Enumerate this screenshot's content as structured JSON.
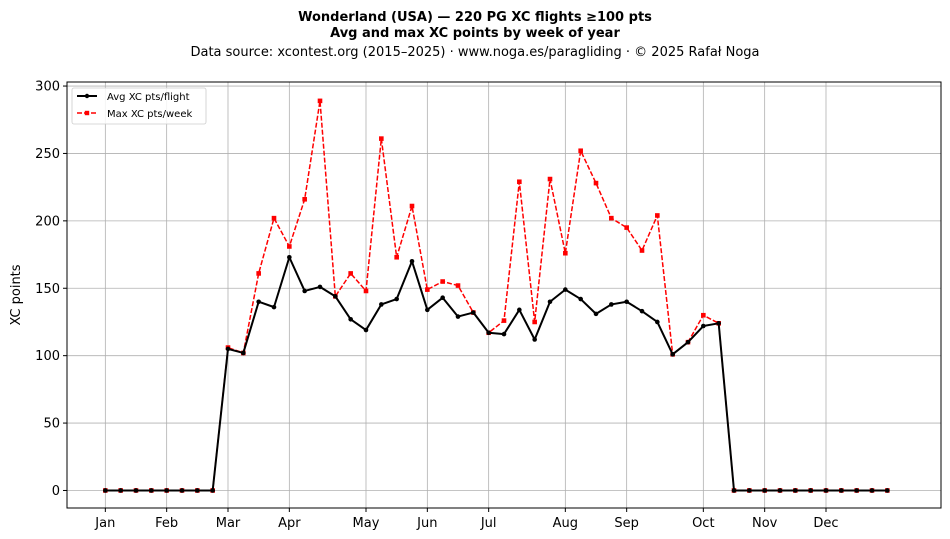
{
  "chart_data": {
    "type": "line",
    "title": "Wonderland (USA)  —  220 PG XC flights ≥100 pts",
    "subtitle": "Avg and max XC points by week of year",
    "source": "Data source: xcontest.org (2015–2025)  ·  www.noga.es/paragliding  ·  © 2025 Rafał Noga",
    "xlabel": "",
    "ylabel": "XC points",
    "ylim": [
      -13,
      303
    ],
    "yticks": [
      0,
      50,
      100,
      150,
      200,
      250,
      300
    ],
    "xlim": [
      -2.5,
      54.5
    ],
    "grid": true,
    "legend_position": "upper-left",
    "x_tick_positions": [
      0,
      4,
      8,
      12,
      17,
      21,
      25,
      30,
      34,
      39,
      43,
      47
    ],
    "x_tick_labels": [
      "Jan",
      "Feb",
      "Mar",
      "Apr",
      "May",
      "Jun",
      "Jul",
      "Aug",
      "Sep",
      "Oct",
      "Nov",
      "Dec"
    ],
    "x": [
      0,
      1,
      2,
      3,
      4,
      5,
      6,
      7,
      8,
      9,
      10,
      11,
      12,
      13,
      14,
      15,
      16,
      17,
      18,
      19,
      20,
      21,
      22,
      23,
      24,
      25,
      26,
      27,
      28,
      29,
      30,
      31,
      32,
      33,
      34,
      35,
      36,
      37,
      38,
      39,
      40,
      41,
      42,
      43,
      44,
      45,
      46,
      47,
      48,
      49,
      50,
      51
    ],
    "series": [
      {
        "name": "Avg XC pts/flight",
        "color": "#000000",
        "style": "solid",
        "marker": "circle",
        "values": [
          0,
          0,
          0,
          0,
          0,
          0,
          0,
          0,
          105,
          102,
          140,
          136,
          173,
          148,
          151,
          144,
          127,
          119,
          138,
          142,
          170,
          134,
          143,
          129,
          132,
          117,
          116,
          134,
          112,
          140,
          149,
          142,
          131,
          138,
          140,
          133,
          125,
          101,
          110,
          122,
          124,
          0,
          0,
          0,
          0,
          0,
          0,
          0,
          0,
          0,
          0,
          0
        ]
      },
      {
        "name": "Max XC pts/week",
        "color": "#ff0000",
        "style": "dashed",
        "marker": "square",
        "values": [
          0,
          0,
          0,
          0,
          0,
          0,
          0,
          0,
          106,
          102,
          161,
          202,
          181,
          216,
          289,
          144,
          161,
          148,
          261,
          173,
          211,
          149,
          155,
          152,
          132,
          117,
          126,
          229,
          125,
          231,
          176,
          252,
          228,
          202,
          195,
          178,
          204,
          101,
          110,
          130,
          124,
          0,
          0,
          0,
          0,
          0,
          0,
          0,
          0,
          0,
          0,
          0
        ]
      }
    ]
  }
}
